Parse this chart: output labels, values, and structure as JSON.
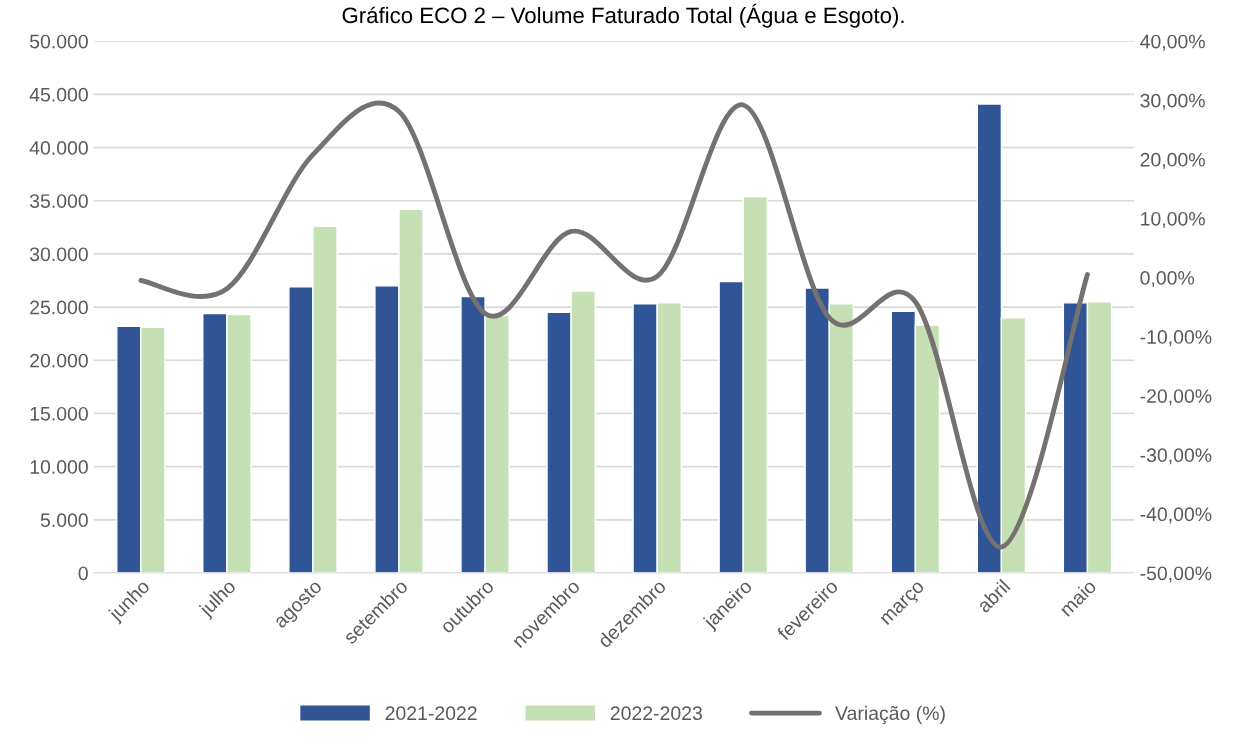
{
  "chart_data": {
    "type": "bar",
    "title": "Gráfico ECO 2 – Volume Faturado Total (Água e Esgoto).",
    "categories": [
      "junho",
      "julho",
      "agosto",
      "setembro",
      "outubro",
      "novembro",
      "dezembro",
      "janeiro",
      "fevereiro",
      "março",
      "abril",
      "maio"
    ],
    "series": [
      {
        "name": "2021-2022",
        "color": "#2f5597",
        "values": [
          23200,
          24400,
          26900,
          27000,
          26000,
          24500,
          25300,
          27400,
          26800,
          24600,
          44100,
          25400
        ]
      },
      {
        "name": "2022-2023",
        "color": "#c5e0b4",
        "values": [
          23100,
          24300,
          32600,
          34200,
          24200,
          26500,
          25400,
          35400,
          25300,
          23300,
          24000,
          25500
        ]
      },
      {
        "name": "Variação (%)",
        "type": "line",
        "axis": "y2",
        "color": "#767171",
        "values": [
          -0.5,
          -1.9,
          20.8,
          28.1,
          -6.1,
          7.8,
          0.2,
          29.2,
          -6.8,
          -4.1,
          -45.6,
          0.5
        ]
      }
    ],
    "ylim": [
      0,
      50000
    ],
    "yticks": [
      0,
      {
        "value": 5000,
        "label": "5.000"
      },
      {
        "value": 10000,
        "label": "10.000"
      },
      {
        "value": 15000,
        "label": "15.000"
      },
      {
        "value": 20000,
        "label": "20.000"
      },
      {
        "value": 25000,
        "label": "25.000"
      },
      {
        "value": 30000,
        "label": "30.000"
      },
      {
        "value": 35000,
        "label": "35.000"
      },
      {
        "value": 40000,
        "label": "40.000"
      },
      {
        "value": 45000,
        "label": "45.000"
      },
      {
        "value": 50000,
        "label": "50.000"
      }
    ],
    "y2lim": [
      -50,
      40
    ],
    "y2ticks": [
      {
        "value": -50,
        "label": "-50,00%"
      },
      {
        "value": -40,
        "label": "-40,00%"
      },
      {
        "value": -30,
        "label": "-30,00%"
      },
      {
        "value": -20,
        "label": "-20,00%"
      },
      {
        "value": -10,
        "label": "-10,00%"
      },
      {
        "value": 0,
        "label": "0,00%"
      },
      {
        "value": 10,
        "label": "10,00%"
      },
      {
        "value": 20,
        "label": "20,00%"
      },
      {
        "value": 30,
        "label": "30,00%"
      },
      {
        "value": 40,
        "label": "40,00%"
      }
    ],
    "grid": "y",
    "legend": "bottom",
    "marker": "none",
    "line_style": "solid"
  }
}
